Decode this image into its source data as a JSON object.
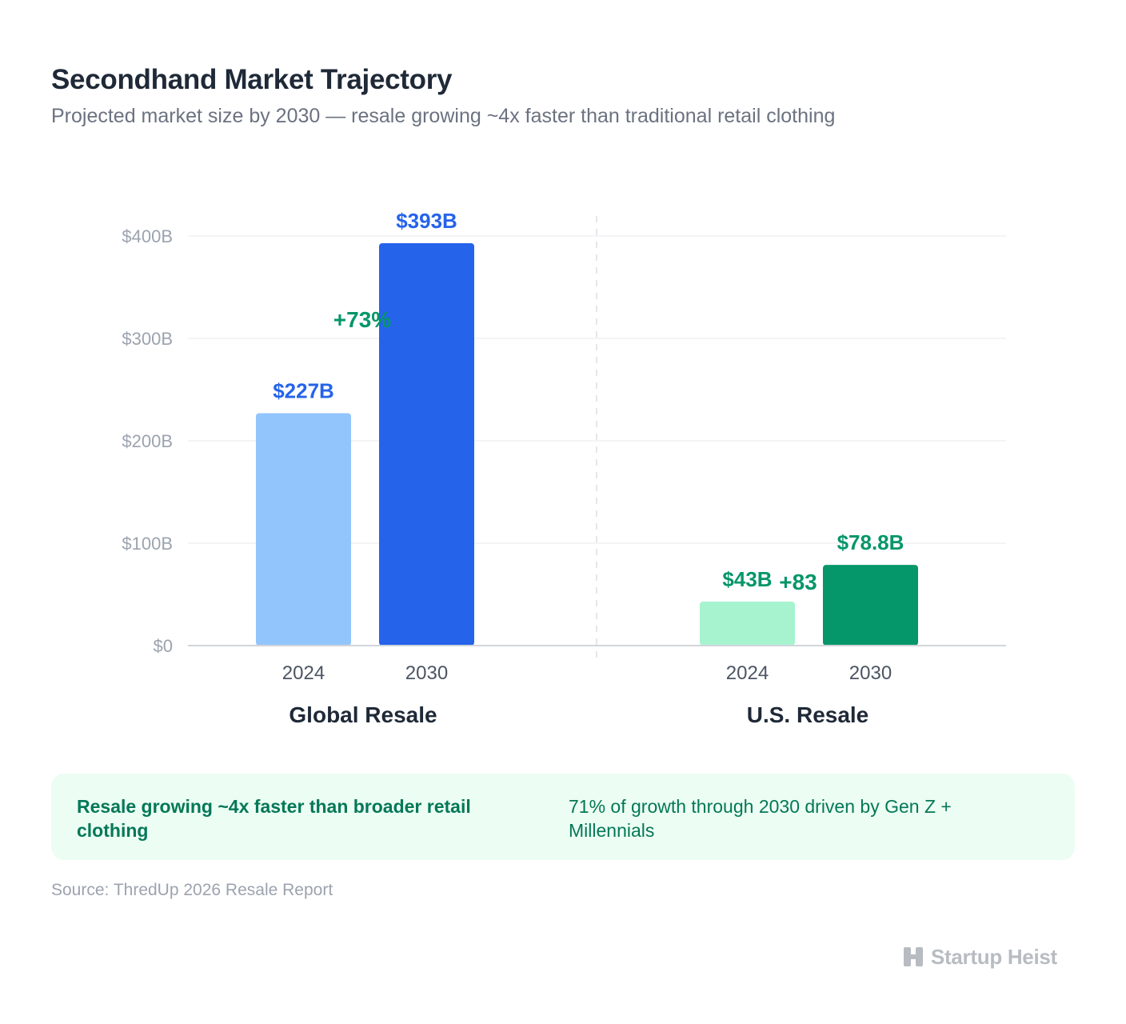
{
  "header": {
    "title": "Secondhand Market Trajectory",
    "subtitle": "Projected market size by 2030 — resale growing ~4x faster than traditional retail clothing"
  },
  "chart_data": {
    "type": "bar",
    "ylim": [
      0,
      400
    ],
    "y_ticks": [
      {
        "value": 0,
        "label": "$0"
      },
      {
        "value": 100,
        "label": "$100B"
      },
      {
        "value": 200,
        "label": "$200B"
      },
      {
        "value": 300,
        "label": "$300B"
      },
      {
        "value": 400,
        "label": "$400B"
      }
    ],
    "grid": true,
    "groups": [
      {
        "name": "Global Resale",
        "growth_label": "+73%",
        "bars": [
          {
            "category": "2024",
            "value": 227,
            "label": "$227B",
            "color": "#93c5fd",
            "label_color": "#2563eb"
          },
          {
            "category": "2030",
            "value": 393,
            "label": "$393B",
            "color": "#2563eb",
            "label_color": "#2563eb"
          }
        ]
      },
      {
        "name": "U.S. Resale",
        "growth_label": "+83",
        "bars": [
          {
            "category": "2024",
            "value": 43,
            "label": "$43B",
            "color": "#a7f3d0",
            "label_color": "#059669"
          },
          {
            "category": "2030",
            "value": 78.8,
            "label": "$78.8B",
            "color": "#059669",
            "label_color": "#059669"
          }
        ]
      }
    ]
  },
  "callout": {
    "left": "Resale growing ~4x faster than broader retail clothing",
    "right": "71% of growth through 2030 driven by Gen Z + Millennials"
  },
  "source": "Source: ThredUp 2026 Resale Report",
  "brand": {
    "name": "Startup Heist",
    "icon": "startup-heist-logo-icon"
  }
}
